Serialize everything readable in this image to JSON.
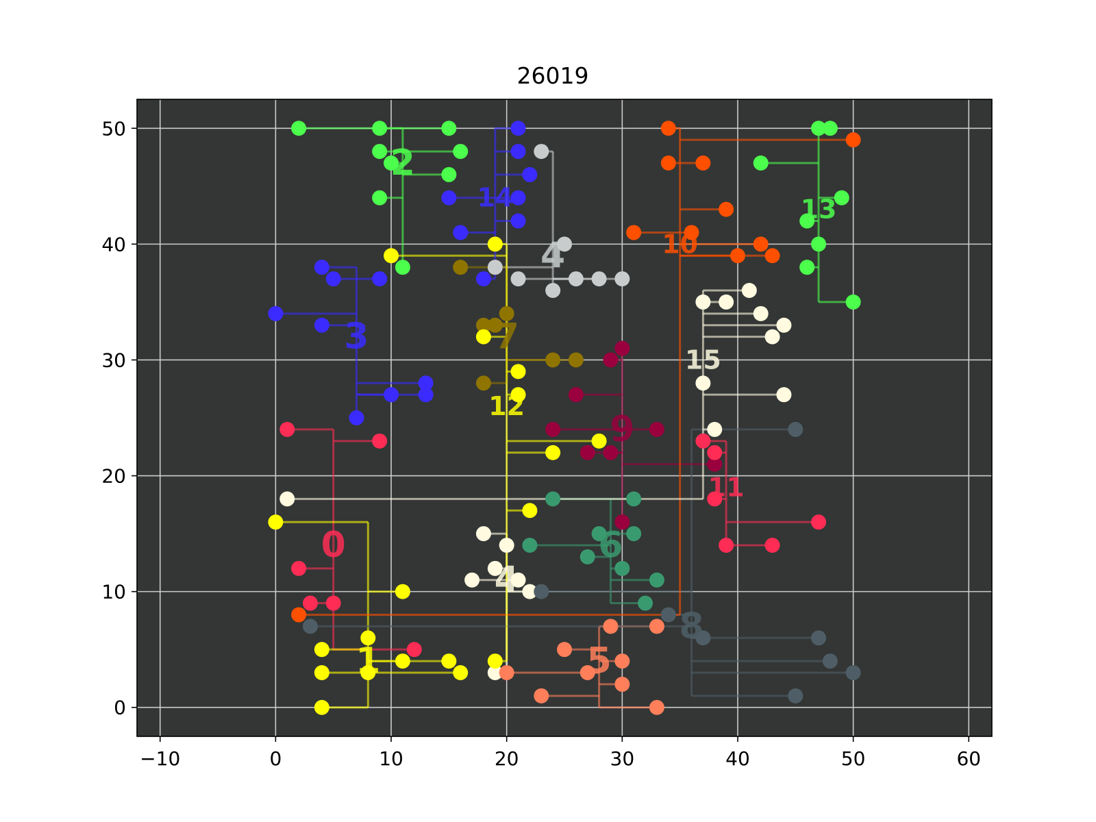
{
  "chart_data": {
    "type": "scatter",
    "title": "26019",
    "xlabel": "",
    "ylabel": "",
    "xlim": [
      -12,
      62
    ],
    "ylim": [
      -2.5,
      52.5
    ],
    "xticks": [
      -10,
      0,
      10,
      20,
      30,
      40,
      50,
      60
    ],
    "yticks": [
      0,
      10,
      20,
      30,
      40,
      50
    ],
    "xtick_labels": [
      "−10",
      "0",
      "10",
      "20",
      "30",
      "40",
      "50",
      "60"
    ],
    "ytick_labels": [
      "0",
      "10",
      "20",
      "30",
      "40",
      "50"
    ],
    "grid": true,
    "background": "#333635",
    "grid_color": "#cccccc",
    "clusters": [
      {
        "label": "0",
        "color": "#ff2d55",
        "label_pos": [
          5,
          14
        ],
        "label_size": 52,
        "trunk_x": 5,
        "points": [
          [
            1,
            24
          ],
          [
            9,
            23
          ],
          [
            2,
            12
          ],
          [
            3,
            9
          ],
          [
            5,
            9
          ],
          [
            12,
            5
          ]
        ]
      },
      {
        "label": "1",
        "color": "#ffff00",
        "label_pos": [
          8,
          4
        ],
        "label_size": 52,
        "trunk_x": 8,
        "points": [
          [
            0,
            16
          ],
          [
            11,
            10
          ],
          [
            8,
            6
          ],
          [
            4,
            5
          ],
          [
            11,
            4
          ],
          [
            15,
            4
          ],
          [
            4,
            3
          ],
          [
            8,
            3
          ],
          [
            16,
            3
          ],
          [
            4,
            0
          ]
        ]
      },
      {
        "label": "2",
        "color": "#4cff4c",
        "label_pos": [
          11,
          47
        ],
        "label_size": 52,
        "trunk_x": 11,
        "points": [
          [
            2,
            50
          ],
          [
            9,
            50
          ],
          [
            15,
            50
          ],
          [
            9,
            48
          ],
          [
            16,
            48
          ],
          [
            10,
            47
          ],
          [
            15,
            46
          ],
          [
            9,
            44
          ],
          [
            11,
            38
          ]
        ]
      },
      {
        "label": "3",
        "color": "#3b2bff",
        "label_pos": [
          7,
          32
        ],
        "label_size": 52,
        "trunk_x": 7,
        "points": [
          [
            4,
            38
          ],
          [
            5,
            37
          ],
          [
            9,
            37
          ],
          [
            0,
            34
          ],
          [
            4,
            33
          ],
          [
            13,
            28
          ],
          [
            10,
            27
          ],
          [
            13,
            27
          ],
          [
            7,
            25
          ]
        ]
      },
      {
        "label": "4",
        "color": "#c8cccc",
        "label_pos": [
          24,
          39
        ],
        "label_size": 52,
        "trunk_x": 24,
        "points": [
          [
            23,
            48
          ],
          [
            25,
            40
          ],
          [
            19,
            38
          ],
          [
            21,
            37
          ],
          [
            26,
            37
          ],
          [
            28,
            37
          ],
          [
            30,
            37
          ],
          [
            24,
            36
          ]
        ]
      },
      {
        "label": "4",
        "color": "#fffae0",
        "label_pos": [
          20,
          11
        ],
        "label_size": 52,
        "trunk_x": 20,
        "points": [
          [
            18,
            15
          ],
          [
            20,
            14
          ],
          [
            19,
            12
          ],
          [
            17,
            11
          ],
          [
            21,
            11
          ],
          [
            22,
            10
          ],
          [
            19,
            3
          ]
        ]
      },
      {
        "label": "5",
        "color": "#ff7f5a",
        "label_pos": [
          28,
          4
        ],
        "label_size": 52,
        "trunk_x": 28,
        "points": [
          [
            29,
            7
          ],
          [
            33,
            7
          ],
          [
            25,
            5
          ],
          [
            30,
            4
          ],
          [
            27,
            3
          ],
          [
            20,
            3
          ],
          [
            30,
            2
          ],
          [
            23,
            1
          ],
          [
            33,
            0
          ]
        ]
      },
      {
        "label": "6",
        "color": "#3a9a6f",
        "label_pos": [
          29,
          14
        ],
        "label_size": 52,
        "trunk_x": 29,
        "points": [
          [
            24,
            18
          ],
          [
            31,
            18
          ],
          [
            28,
            15
          ],
          [
            31,
            15
          ],
          [
            22,
            14
          ],
          [
            27,
            13
          ],
          [
            30,
            12
          ],
          [
            33,
            11
          ],
          [
            32,
            9
          ]
        ]
      },
      {
        "label": "7",
        "color": "#8f7400",
        "label_pos": [
          20,
          32
        ],
        "label_size": 52,
        "trunk_x": 20,
        "points": [
          [
            20,
            34
          ],
          [
            18,
            33
          ],
          [
            19,
            33
          ],
          [
            24,
            30
          ],
          [
            26,
            30
          ],
          [
            18,
            28
          ],
          [
            16,
            38
          ]
        ]
      },
      {
        "label": "8",
        "color": "#4f5e66",
        "label_pos": [
          36,
          7
        ],
        "label_size": 52,
        "trunk_x": 36,
        "points": [
          [
            45,
            24
          ],
          [
            23,
            10
          ],
          [
            34,
            8
          ],
          [
            3,
            7
          ],
          [
            37,
            6
          ],
          [
            47,
            6
          ],
          [
            48,
            4
          ],
          [
            50,
            3
          ],
          [
            45,
            1
          ]
        ]
      },
      {
        "label": "9",
        "color": "#99003d",
        "label_pos": [
          30,
          24
        ],
        "label_size": 52,
        "trunk_x": 30,
        "points": [
          [
            30,
            31
          ],
          [
            29,
            30
          ],
          [
            26,
            27
          ],
          [
            24,
            24
          ],
          [
            33,
            24
          ],
          [
            27,
            22
          ],
          [
            29,
            22
          ],
          [
            38,
            21
          ],
          [
            30,
            16
          ]
        ]
      },
      {
        "label": "10",
        "color": "#ff5000",
        "label_pos": [
          35,
          40
        ],
        "label_size": 38,
        "trunk_x": 35,
        "points": [
          [
            34,
            50
          ],
          [
            50,
            49
          ],
          [
            34,
            47
          ],
          [
            37,
            47
          ],
          [
            39,
            43
          ],
          [
            31,
            41
          ],
          [
            36,
            41
          ],
          [
            42,
            40
          ],
          [
            40,
            39
          ],
          [
            43,
            39
          ],
          [
            2,
            8
          ]
        ]
      },
      {
        "label": "11",
        "color": "#ff2d55",
        "label_pos": [
          39,
          19
        ],
        "label_size": 38,
        "trunk_x": 39,
        "points": [
          [
            37,
            23
          ],
          [
            38,
            22
          ],
          [
            38,
            18
          ],
          [
            47,
            16
          ],
          [
            39,
            14
          ],
          [
            43,
            14
          ]
        ]
      },
      {
        "label": "12",
        "color": "#ffff00",
        "label_pos": [
          20,
          26
        ],
        "label_size": 38,
        "trunk_x": 20,
        "points": [
          [
            19,
            40
          ],
          [
            10,
            39
          ],
          [
            18,
            32
          ],
          [
            21,
            29
          ],
          [
            21,
            27
          ],
          [
            28,
            23
          ],
          [
            24,
            22
          ],
          [
            22,
            17
          ],
          [
            19,
            4
          ]
        ]
      },
      {
        "label": "13",
        "color": "#4cff4c",
        "label_pos": [
          47,
          43
        ],
        "label_size": 38,
        "trunk_x": 47,
        "points": [
          [
            47,
            50
          ],
          [
            48,
            50
          ],
          [
            42,
            47
          ],
          [
            49,
            44
          ],
          [
            46,
            42
          ],
          [
            47,
            40
          ],
          [
            46,
            38
          ],
          [
            50,
            35
          ]
        ]
      },
      {
        "label": "14",
        "color": "#3b2bff",
        "label_pos": [
          19,
          44
        ],
        "label_size": 38,
        "trunk_x": 19,
        "points": [
          [
            21,
            50
          ],
          [
            21,
            48
          ],
          [
            22,
            46
          ],
          [
            15,
            44
          ],
          [
            21,
            44
          ],
          [
            21,
            42
          ],
          [
            16,
            41
          ],
          [
            18,
            37
          ]
        ]
      },
      {
        "label": "15",
        "color": "#fffae0",
        "label_pos": [
          37,
          30
        ],
        "label_size": 38,
        "trunk_x": 37,
        "points": [
          [
            41,
            36
          ],
          [
            37,
            35
          ],
          [
            39,
            35
          ],
          [
            42,
            34
          ],
          [
            44,
            33
          ],
          [
            43,
            32
          ],
          [
            37,
            28
          ],
          [
            44,
            27
          ],
          [
            38,
            24
          ],
          [
            1,
            18
          ]
        ]
      }
    ]
  }
}
